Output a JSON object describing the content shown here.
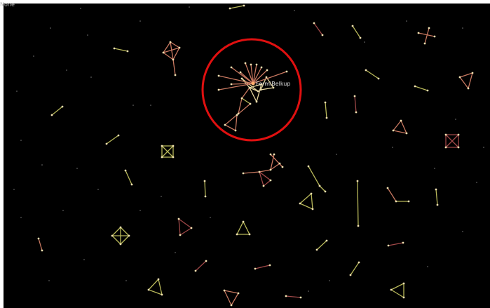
{
  "status": "None",
  "graph": {
    "highlighted_label": "FermiBelkup"
  }
}
